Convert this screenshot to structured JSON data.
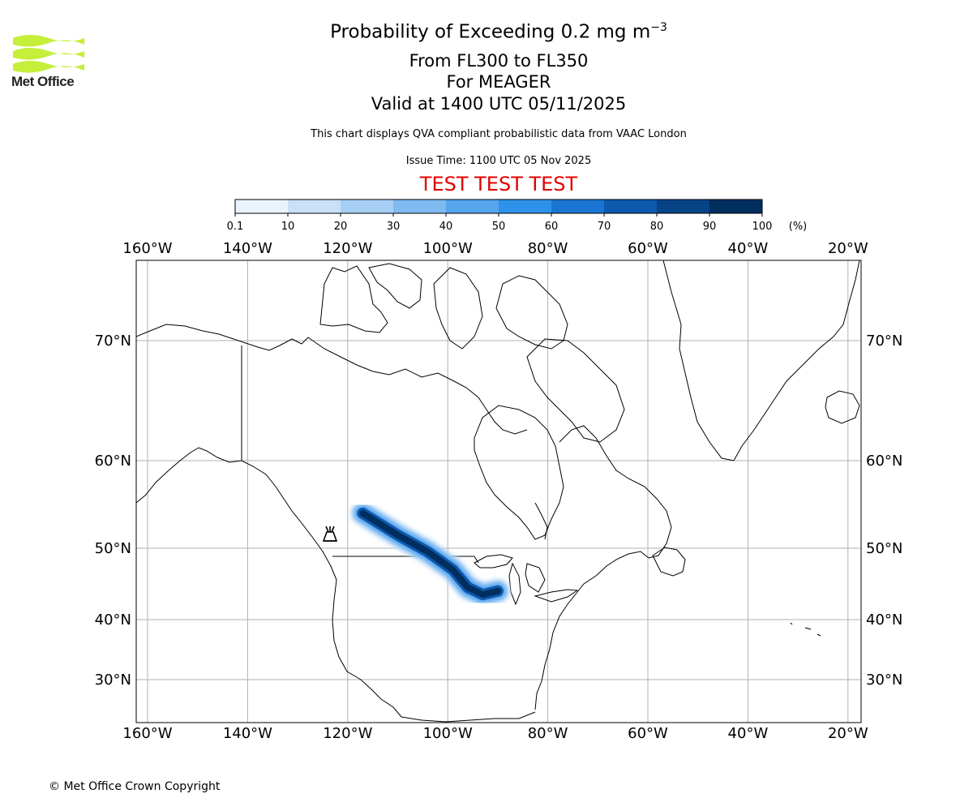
{
  "logo": {
    "name": "Met Office"
  },
  "title": {
    "main": "Probability of Exceeding 0.2 mg m",
    "main_exponent": "−3",
    "levels": "From FL300 to FL350",
    "volcano": "For MEAGER",
    "valid": "Valid at 1400 UTC 05/11/2025",
    "note": "This chart displays QVA compliant probabilistic data from VAAC London",
    "issue": "Issue Time: 1100 UTC 05 Nov 2025",
    "test_banner": "TEST TEST TEST"
  },
  "colorbar": {
    "ticks": [
      "0.1",
      "10",
      "20",
      "30",
      "40",
      "50",
      "60",
      "70",
      "80",
      "90",
      "100"
    ],
    "unit": "(%)",
    "colors": [
      "#eaf3fd",
      "#c8e0f8",
      "#a7cff5",
      "#7fbaf1",
      "#55a5ef",
      "#2f92ea",
      "#1a74d2",
      "#0d59ae",
      "#064487",
      "#002e5e"
    ]
  },
  "map": {
    "lon_labels": [
      "160°W",
      "140°W",
      "120°W",
      "100°W",
      "80°W",
      "60°W",
      "40°W",
      "20°W"
    ],
    "lat_labels": [
      "70°N",
      "60°N",
      "50°N",
      "40°N",
      "30°N"
    ],
    "volcano_symbol": "volcano-icon",
    "plume": {
      "name": "ash-probability-plume",
      "path_lonlat": [
        [
          -117,
          54
        ],
        [
          -110,
          51.5
        ],
        [
          -104,
          49.5
        ],
        [
          -99,
          47
        ],
        [
          -96,
          44.5
        ],
        [
          -93,
          43.5
        ],
        [
          -90,
          44
        ]
      ],
      "peak_probability_percent": 100
    },
    "grid": true
  },
  "footer": {
    "copyright": "© Met Office Crown Copyright"
  }
}
